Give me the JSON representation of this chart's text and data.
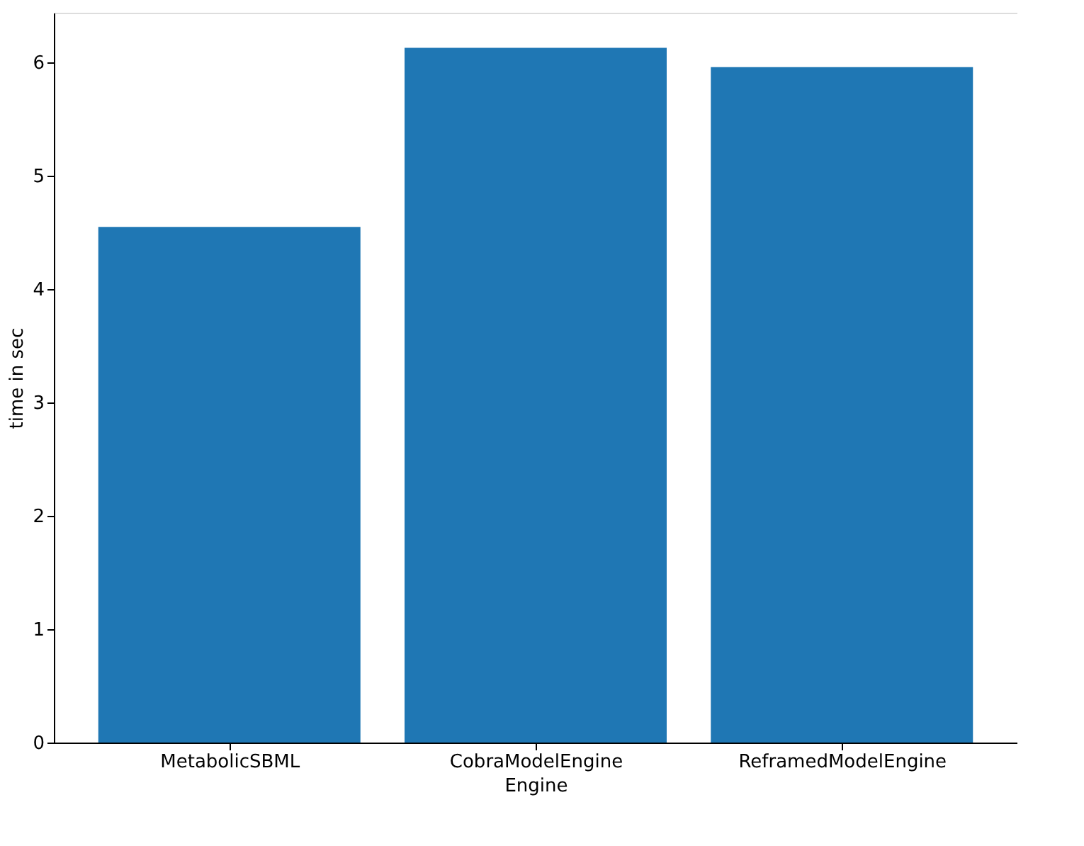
{
  "chart_data": {
    "type": "bar",
    "xlabel": "Engine",
    "ylabel": "time in sec",
    "categories": [
      "MetabolicSBML",
      "CobraModelEngine",
      "ReframedModelEngine"
    ],
    "values": [
      4.55,
      6.13,
      5.96
    ],
    "color": "#1f77b4",
    "ylim": [
      0,
      6.44
    ],
    "yticks": [
      0,
      1,
      2,
      3,
      4,
      5,
      6
    ],
    "grid": false
  }
}
